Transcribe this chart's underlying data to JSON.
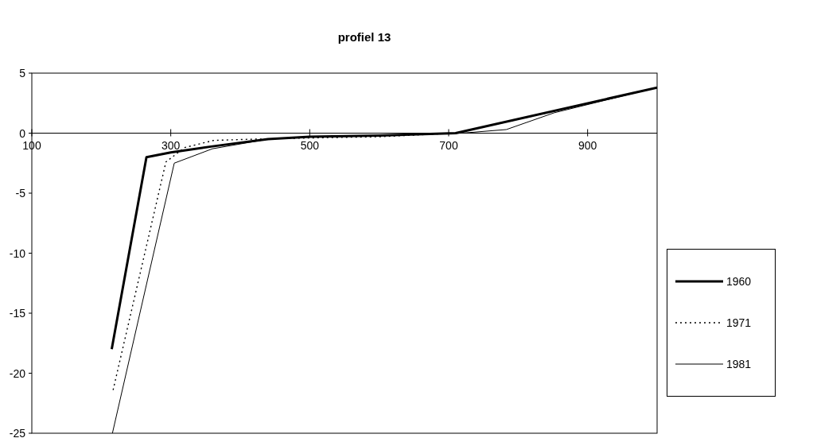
{
  "chart_data": {
    "type": "line",
    "title": "profiel 13",
    "xlim": [
      100,
      1000
    ],
    "xticks": [
      100,
      300,
      500,
      700,
      900
    ],
    "ylim": [
      -25,
      5
    ],
    "yticks": [
      5,
      0,
      -5,
      -10,
      -15,
      -20,
      -25
    ],
    "grid": false,
    "legend": "right",
    "marker": "none",
    "series": [
      {
        "name": "1960",
        "color": "#000000",
        "line_style": "solid",
        "x": [
          215,
          265,
          300,
          360,
          440,
          500,
          600,
          710,
          1000
        ],
        "values": [
          -18,
          -2,
          -1.6,
          -1.1,
          -0.5,
          -0.3,
          -0.2,
          0,
          3.8
        ]
      },
      {
        "name": "1971",
        "color": "#000000",
        "line_style": "dotted",
        "x": [
          217,
          293,
          320,
          362,
          420,
          500,
          600,
          710,
          850,
          1000
        ],
        "values": [
          -21.4,
          -2.4,
          -1.2,
          -0.6,
          -0.5,
          -0.4,
          -0.3,
          0,
          1.8,
          3.8
        ]
      },
      {
        "name": "1981",
        "color": "#000000",
        "line_style": "solid",
        "x": [
          216,
          305,
          360,
          440,
          500,
          600,
          719,
          783,
          852,
          1000
        ],
        "values": [
          -25,
          -2.5,
          -1.3,
          -0.5,
          -0.3,
          -0.2,
          0,
          0.3,
          1.7,
          3.8
        ]
      }
    ]
  }
}
